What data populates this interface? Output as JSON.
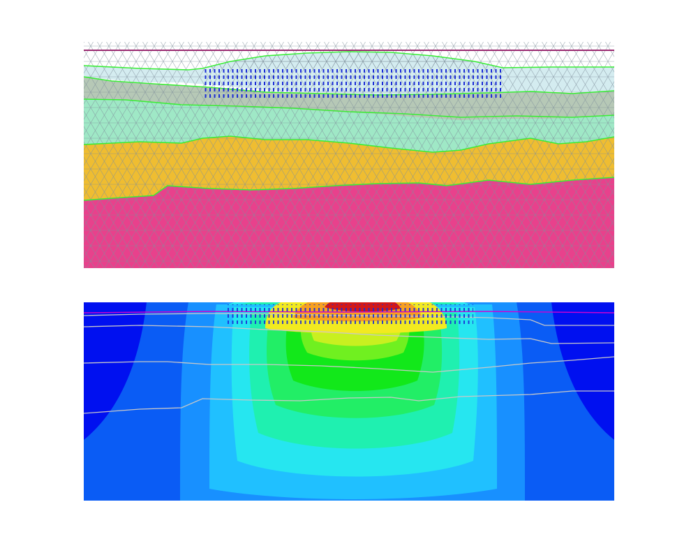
{
  "figure": {
    "panels": [
      {
        "id": "mesh-panel",
        "description_kind": "finite-element mesh of layered soil with embankment and vertical drains",
        "layers": [
          {
            "name": "layer-1",
            "color": "#d4ecf0"
          },
          {
            "name": "layer-2",
            "color": "#b6c8b6"
          },
          {
            "name": "layer-3",
            "color": "#9fe8c6"
          },
          {
            "name": "layer-4",
            "color": "#efbd31"
          },
          {
            "name": "layer-5",
            "color": "#e8418c"
          }
        ],
        "mesh_line_color": "#7f8f9a",
        "boundary_color": "#39ee35",
        "drain_color": "#1a2bd6",
        "drain_columns": 26
      },
      {
        "id": "contour-panel",
        "description_kind": "contour plot of excess pore pressure / settlement distribution",
        "color_levels": [
          "#0010f0",
          "#0a5cf5",
          "#1890ff",
          "#20c0ff",
          "#26e6f0",
          "#1ff0b0",
          "#22ee66",
          "#12e81a",
          "#70f020",
          "#c8f020",
          "#f2ea20",
          "#f7a020",
          "#ee5020",
          "#d21818"
        ],
        "layer_boundary_color": "#c8c8c8",
        "surface_line_color": "#d000d0"
      }
    ]
  }
}
